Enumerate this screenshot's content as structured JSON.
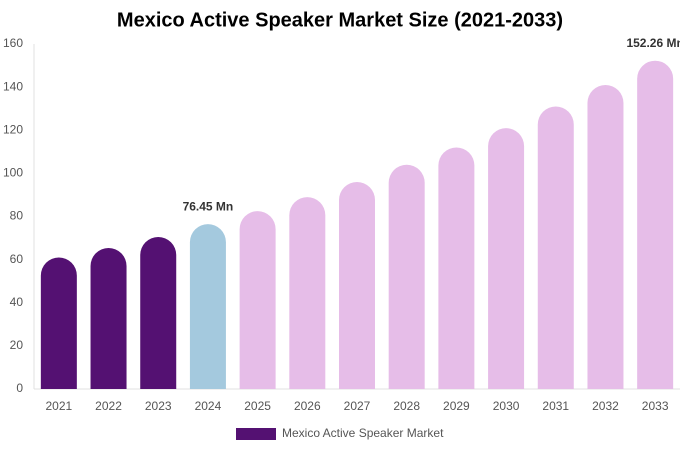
{
  "chart_data": {
    "type": "bar",
    "title": "Mexico Active Speaker Market Size (2021-2033)",
    "categories": [
      "2021",
      "2022",
      "2023",
      "2024",
      "2025",
      "2026",
      "2027",
      "2028",
      "2029",
      "2030",
      "2031",
      "2032",
      "2033"
    ],
    "series": [
      {
        "name": "Mexico Active Speaker Market",
        "color": "#541172",
        "colors": [
          "#541172",
          "#541172",
          "#541172",
          "#a4c9de",
          "#e6bde8",
          "#e6bde8",
          "#e6bde8",
          "#e6bde8",
          "#e6bde8",
          "#e6bde8",
          "#e6bde8",
          "#e6bde8",
          "#e6bde8"
        ],
        "values": [
          61,
          65.4,
          70.5,
          76.45,
          82.5,
          89,
          96,
          104,
          112,
          121,
          131,
          141,
          152.26
        ],
        "value_labels": [
          null,
          null,
          null,
          "76.45 Mn",
          null,
          null,
          null,
          null,
          null,
          null,
          null,
          null,
          "152.26 Mn"
        ]
      }
    ],
    "ylim": [
      0,
      160
    ],
    "yticks": [
      0,
      20,
      40,
      60,
      80,
      100,
      120,
      140,
      160
    ],
    "grid": false,
    "legend": "bottom"
  }
}
